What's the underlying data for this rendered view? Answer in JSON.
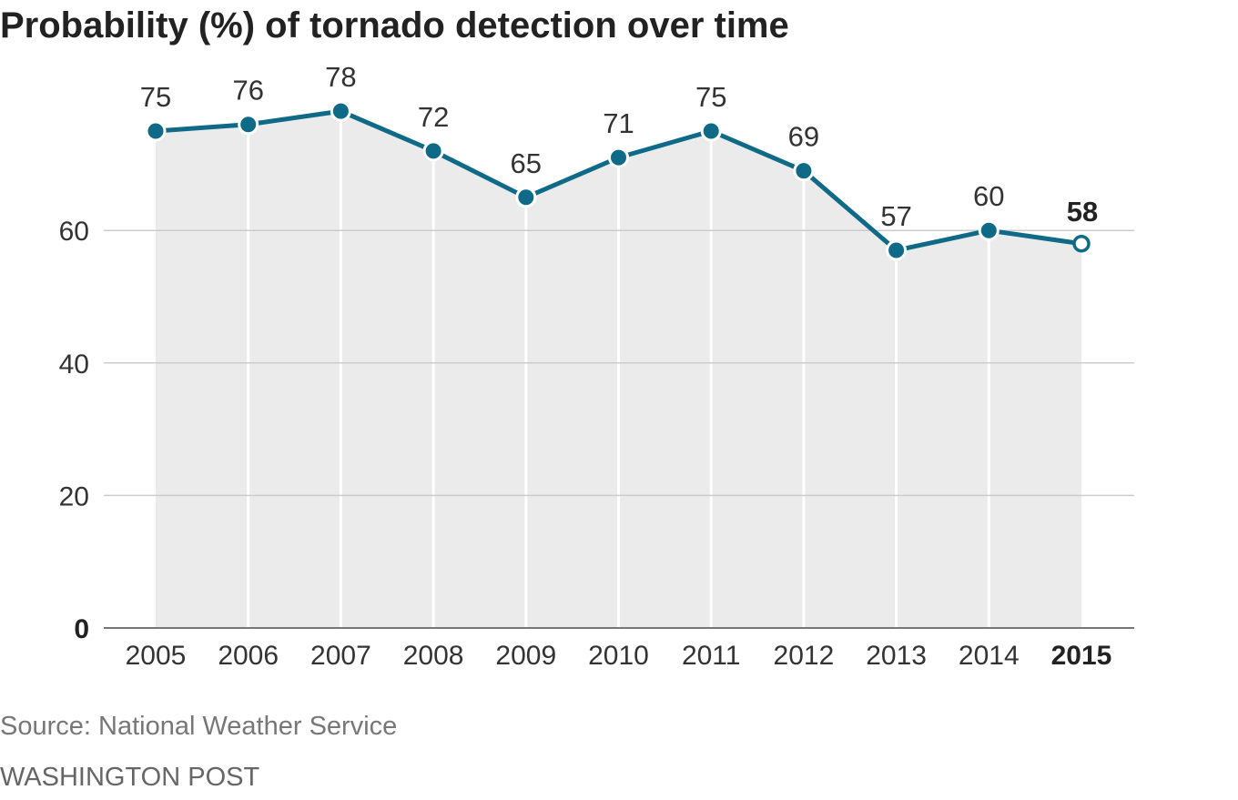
{
  "title": "Probability (%) of tornado detection over time",
  "source": "Source: National Weather Service",
  "credit": "WASHINGTON POST",
  "colors": {
    "line": "#0f6a87",
    "area": "#ebebeb",
    "grid": "#cccccc",
    "axis": "#777777"
  },
  "chart_data": {
    "type": "area",
    "title": "Probability (%) of tornado detection over time",
    "xlabel": "",
    "ylabel": "",
    "x": [
      "2005",
      "2006",
      "2007",
      "2008",
      "2009",
      "2010",
      "2011",
      "2012",
      "2013",
      "2014",
      "2015"
    ],
    "values": [
      75,
      76,
      78,
      72,
      65,
      71,
      75,
      69,
      57,
      60,
      58
    ],
    "data_labels": [
      "75",
      "76",
      "78",
      "72",
      "65",
      "71",
      "75",
      "69",
      "57",
      "60",
      "58"
    ],
    "y_ticks": [
      0,
      20,
      40,
      60
    ],
    "y_tick_labels": [
      "0",
      "20",
      "40",
      "60"
    ],
    "ylim": [
      0,
      80
    ],
    "highlight": {
      "x": "2015",
      "style": "bold label, hollow marker"
    },
    "grid": true,
    "legend": "none"
  }
}
